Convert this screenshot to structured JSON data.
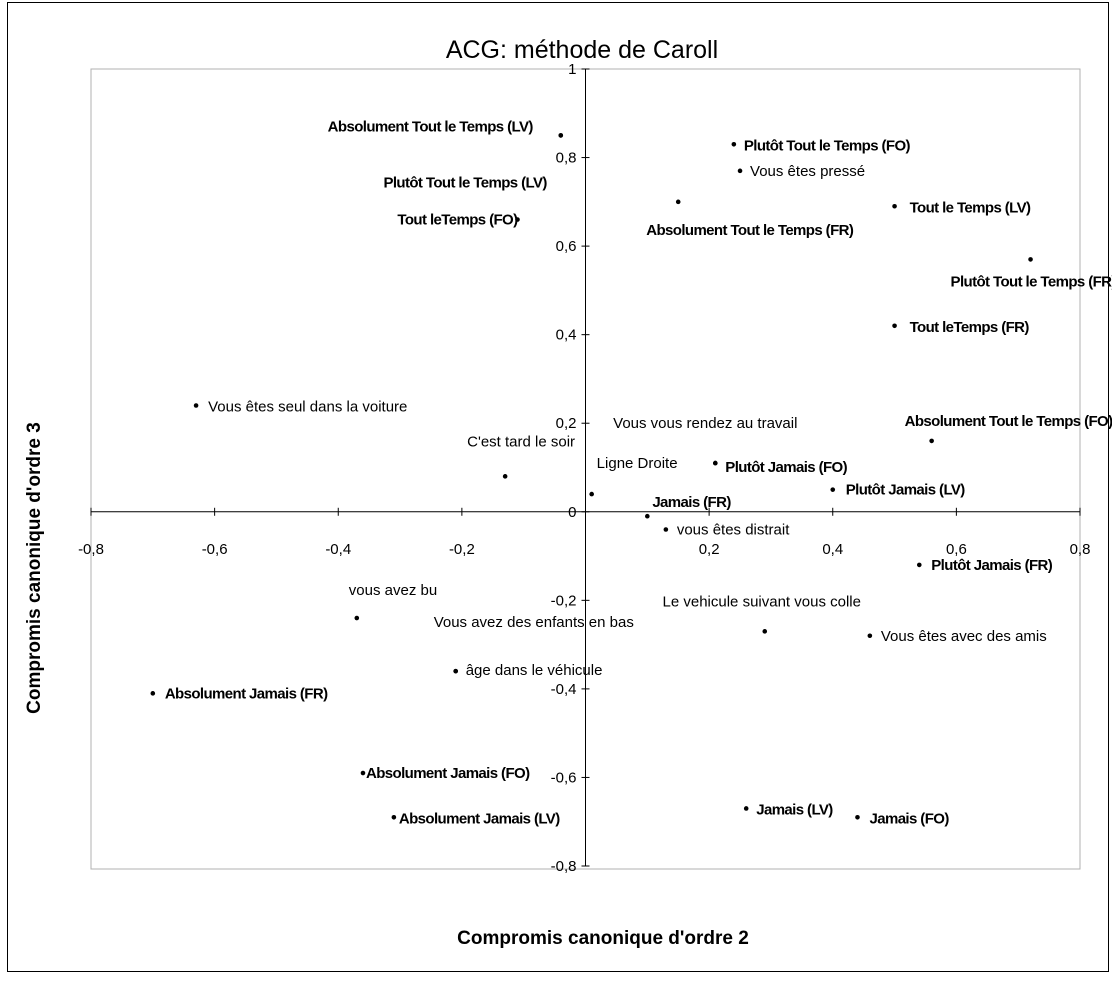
{
  "chart_data": {
    "type": "scatter",
    "title": "ACG: méthode de Caroll",
    "xlabel": "Compromis canonique d'ordre 2",
    "ylabel": "Compromis canonique d'ordre 3",
    "xlim": [
      -0.8,
      0.8
    ],
    "ylim": [
      -0.8,
      1
    ],
    "x_ticks": [
      "-0,8",
      "-0,6",
      "-0,4",
      "-0,2",
      "0,2",
      "0,4",
      "0,6",
      "0,8"
    ],
    "x_tick_values": [
      -0.8,
      -0.6,
      -0.4,
      -0.2,
      0.2,
      0.4,
      0.6,
      0.8
    ],
    "y_ticks": [
      "-0,8",
      "-0,6",
      "-0,4",
      "-0,2",
      "0",
      "0,2",
      "0,4",
      "0,6",
      "0,8",
      "1"
    ],
    "y_tick_values": [
      -0.8,
      -0.6,
      -0.4,
      -0.2,
      0,
      0.2,
      0.4,
      0.6,
      0.8,
      1
    ],
    "grid": false,
    "legend": "none",
    "points": [
      {
        "label": "Absolument Tout le Temps (LV)",
        "x": -0.04,
        "y": 0.85,
        "bold": true,
        "anchor": "end",
        "dx": -28,
        "dy": -4
      },
      {
        "label": "Plutôt Tout le Temps (LV)",
        "x": -0.04,
        "y": 0.85,
        "bold": true,
        "anchor": "end",
        "dx": -14,
        "dy": 52
      },
      {
        "label": "Tout leTemps (FO)",
        "x": -0.11,
        "y": 0.66,
        "bold": true,
        "anchor": "end",
        "dx": 0,
        "dy": 5
      },
      {
        "label": "Plutôt Tout le Temps (FO)",
        "x": 0.24,
        "y": 0.83,
        "bold": true,
        "anchor": "start",
        "dx": 10,
        "dy": 6
      },
      {
        "label": "Vous êtes pressé",
        "x": 0.25,
        "y": 0.77,
        "bold": false,
        "anchor": "start",
        "dx": 10,
        "dy": 5
      },
      {
        "label": "Absolument Tout le Temps (FR)",
        "x": 0.15,
        "y": 0.7,
        "bold": true,
        "anchor": "start",
        "dx": -32,
        "dy": 33
      },
      {
        "label": "Tout le Temps (LV)",
        "x": 0.5,
        "y": 0.69,
        "bold": true,
        "anchor": "start",
        "dx": 15,
        "dy": 6
      },
      {
        "label": "Plutôt Tout le Temps (FR)",
        "x": 0.72,
        "y": 0.57,
        "bold": true,
        "anchor": "start",
        "dx": -80,
        "dy": 27
      },
      {
        "label": "Tout leTemps (FR)",
        "x": 0.5,
        "y": 0.42,
        "bold": true,
        "anchor": "start",
        "dx": 15,
        "dy": 6
      },
      {
        "label": "Vous êtes seul dans la voiture",
        "x": -0.63,
        "y": 0.24,
        "bold": false,
        "anchor": "start",
        "dx": 12,
        "dy": 6
      },
      {
        "label": "Vous vous rendez au travail",
        "x": 0.21,
        "y": 0.11,
        "bold": false,
        "anchor": "middle",
        "dx": -10,
        "dy": -35
      },
      {
        "label": "C'est tard le soir",
        "x": -0.13,
        "y": 0.08,
        "bold": false,
        "anchor": "start",
        "dx": -38,
        "dy": -30
      },
      {
        "label": "Ligne Droite",
        "x": 0.01,
        "y": 0.04,
        "bold": false,
        "anchor": "start",
        "dx": 5,
        "dy": -26
      },
      {
        "label": "Plutôt Jamais (FO)",
        "x": 0.21,
        "y": 0.11,
        "bold": true,
        "anchor": "start",
        "dx": 10,
        "dy": 9
      },
      {
        "label": "Absolument Tout le Temps (FO)",
        "x": 0.56,
        "y": 0.16,
        "bold": true,
        "anchor": "start",
        "dx": -27,
        "dy": -15
      },
      {
        "label": "Plutôt Jamais (LV)",
        "x": 0.4,
        "y": 0.05,
        "bold": true,
        "anchor": "start",
        "dx": 13,
        "dy": 5
      },
      {
        "label": "Jamais (FR)",
        "x": 0.1,
        "y": -0.01,
        "bold": true,
        "anchor": "start",
        "dx": 5,
        "dy": -9
      },
      {
        "label": "vous êtes distrait",
        "x": 0.13,
        "y": -0.04,
        "bold": false,
        "anchor": "start",
        "dx": 11,
        "dy": 5
      },
      {
        "label": "Plutôt Jamais (FR)",
        "x": 0.54,
        "y": -0.12,
        "bold": true,
        "anchor": "start",
        "dx": 12,
        "dy": 5
      },
      {
        "label": "vous avez bu",
        "x": -0.37,
        "y": -0.24,
        "bold": false,
        "anchor": "start",
        "dx": -8,
        "dy": -23
      },
      {
        "label": "Le vehicule suivant vous colle",
        "x": 0.29,
        "y": -0.27,
        "bold": false,
        "anchor": "middle",
        "dx": -3,
        "dy": -25
      },
      {
        "label": "Vous êtes avec des amis",
        "x": 0.46,
        "y": -0.28,
        "bold": false,
        "anchor": "start",
        "dx": 11,
        "dy": 5
      },
      {
        "label": "Vous avez des enfants en bas",
        "x": -0.21,
        "y": -0.36,
        "bold": false,
        "anchor": "start",
        "dx": -22,
        "dy": -44
      },
      {
        "label": "âge dans le véhicule",
        "x": -0.21,
        "y": -0.36,
        "bold": false,
        "anchor": "start",
        "dx": 10,
        "dy": 4
      },
      {
        "label": "Absolument Jamais (FR)",
        "x": -0.7,
        "y": -0.41,
        "bold": true,
        "anchor": "start",
        "dx": 12,
        "dy": 5
      },
      {
        "label": "Absolument Jamais (FO)",
        "x": -0.36,
        "y": -0.59,
        "bold": true,
        "anchor": "start",
        "dx": 3,
        "dy": 5
      },
      {
        "label": "Absolument Jamais (LV)",
        "x": -0.31,
        "y": -0.69,
        "bold": true,
        "anchor": "start",
        "dx": 5,
        "dy": 6
      },
      {
        "label": "Jamais (LV)",
        "x": 0.26,
        "y": -0.67,
        "bold": true,
        "anchor": "start",
        "dx": 10,
        "dy": 6
      },
      {
        "label": "Jamais (FO)",
        "x": 0.44,
        "y": -0.69,
        "bold": true,
        "anchor": "start",
        "dx": 12,
        "dy": 6
      }
    ]
  }
}
